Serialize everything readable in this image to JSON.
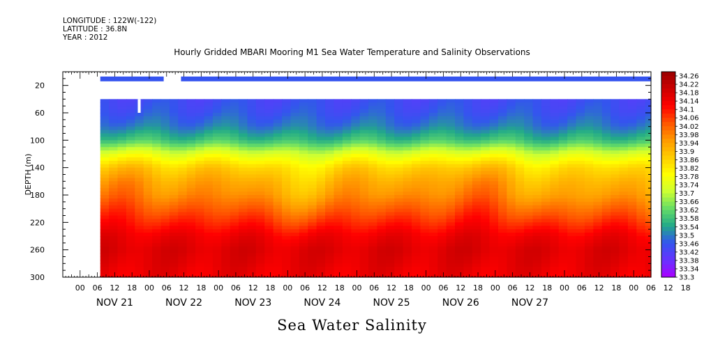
{
  "header": {
    "longitude": "LONGITUDE : 122W(-122)",
    "latitude": "LATITUDE : 36.8N",
    "year": "YEAR : 2012"
  },
  "chart_data": {
    "type": "heatmap",
    "title": "Hourly Gridded MBARI Mooring M1 Sea Water Temperature and Salinity Observations",
    "footer_title": "Sea Water Salinity",
    "xlabel": "",
    "ylabel": "DEPTH (m)",
    "y_inverted": true,
    "ylim": [
      0,
      300
    ],
    "y_ticks": [
      20,
      60,
      100,
      140,
      180,
      220,
      260,
      300
    ],
    "x_hours_range": [
      -6,
      198
    ],
    "x_hour_tick_labels": [
      "00",
      "06",
      "12",
      "18",
      "00",
      "06",
      "12",
      "18",
      "00",
      "06",
      "12",
      "18",
      "00",
      "06",
      "12",
      "18",
      "00",
      "06",
      "12",
      "18",
      "00",
      "06",
      "12",
      "18",
      "00",
      "06",
      "12",
      "18",
      "00",
      "06",
      "12",
      "18",
      "00",
      "06",
      "12",
      "18"
    ],
    "x_day_labels": [
      "NOV 21",
      "NOV 22",
      "NOV 23",
      "NOV 24",
      "NOV 25",
      "NOV 26",
      "NOV 27"
    ],
    "data_start_hour": 7,
    "near_surface_band": {
      "depth_range": [
        7,
        14
      ],
      "value": 33.46,
      "gap_hours": [
        29,
        35
      ]
    },
    "profile_start_depth": 40,
    "missing_patch": {
      "hours": [
        20,
        21
      ],
      "depth_range": [
        40,
        60
      ]
    },
    "mean_profile": [
      {
        "depth": 40,
        "value": 33.44
      },
      {
        "depth": 60,
        "value": 33.46
      },
      {
        "depth": 80,
        "value": 33.5
      },
      {
        "depth": 100,
        "value": 33.58
      },
      {
        "depth": 120,
        "value": 33.74
      },
      {
        "depth": 140,
        "value": 33.86
      },
      {
        "depth": 160,
        "value": 33.92
      },
      {
        "depth": 180,
        "value": 33.96
      },
      {
        "depth": 200,
        "value": 34.02
      },
      {
        "depth": 220,
        "value": 34.08
      },
      {
        "depth": 240,
        "value": 34.14
      },
      {
        "depth": 260,
        "value": 34.17
      },
      {
        "depth": 280,
        "value": 34.16
      },
      {
        "depth": 300,
        "value": 34.14
      }
    ],
    "colorbar": {
      "labels": [
        "34.26",
        "34.22",
        "34.18",
        "34.14",
        "34.1",
        "34.06",
        "34.02",
        "33.98",
        "33.94",
        "33.9",
        "33.86",
        "33.82",
        "33.78",
        "33.74",
        "33.7",
        "33.66",
        "33.62",
        "33.58",
        "33.54",
        "33.5",
        "33.46",
        "33.42",
        "33.38",
        "33.34",
        "33.3"
      ],
      "min": 33.3,
      "max": 34.28,
      "step": 0.02,
      "colors": [
        "#990000",
        "#cc0000",
        "#ff0000",
        "#ff5500",
        "#ff9900",
        "#ffcc00",
        "#ffff00",
        "#ccff33",
        "#66dd66",
        "#22aa88",
        "#3355ee",
        "#6633ff",
        "#aa00ff"
      ]
    }
  }
}
